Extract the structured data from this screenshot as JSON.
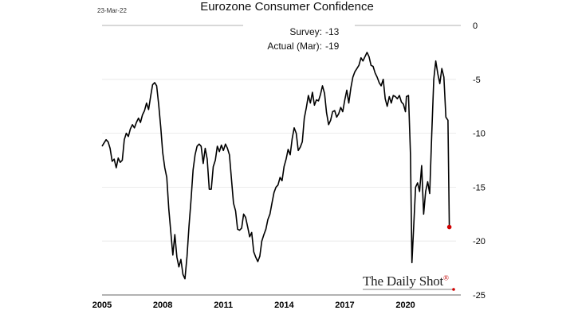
{
  "date_stamp": "23-Mar-22",
  "annotations": {
    "survey_label": "Survey:",
    "survey_value": "-13",
    "actual_label": "Actual (Mar):",
    "actual_value": "-19"
  },
  "brand": "The Daily Shot",
  "brand_mark": "®",
  "colors": {
    "line": "#000000",
    "marker": "#d00000",
    "grid": "#e6e6e6"
  },
  "chart_data": {
    "type": "line",
    "title": "Eurozone Consumer Confidence",
    "xlabel": "",
    "ylabel": "",
    "xlim": [
      2005.0,
      2022.5
    ],
    "ylim": [
      -25,
      0
    ],
    "x_ticks": [
      2005,
      2008,
      2011,
      2014,
      2017,
      2020
    ],
    "x_tick_labels": [
      "2005",
      "2008",
      "2011",
      "2014",
      "2017",
      "2020"
    ],
    "y_ticks": [
      0,
      -5,
      -10,
      -15,
      -20,
      -25
    ],
    "y_tick_labels": [
      "0",
      "-5",
      "-10",
      "-15",
      "-20",
      "-25"
    ],
    "y_axis_side": "right",
    "grid": "horizontal",
    "series": [
      {
        "points": [
          [
            2005.0,
            -11.2
          ],
          [
            2005.1,
            -10.9
          ],
          [
            2005.2,
            -10.6
          ],
          [
            2005.3,
            -10.8
          ],
          [
            2005.4,
            -11.4
          ],
          [
            2005.5,
            -12.6
          ],
          [
            2005.6,
            -12.4
          ],
          [
            2005.7,
            -13.2
          ],
          [
            2005.8,
            -12.3
          ],
          [
            2005.9,
            -12.7
          ],
          [
            2006.0,
            -12.5
          ],
          [
            2006.1,
            -10.6
          ],
          [
            2006.2,
            -10.0
          ],
          [
            2006.3,
            -10.3
          ],
          [
            2006.4,
            -9.6
          ],
          [
            2006.5,
            -9.2
          ],
          [
            2006.6,
            -9.5
          ],
          [
            2006.7,
            -9.0
          ],
          [
            2006.8,
            -8.6
          ],
          [
            2006.9,
            -9.0
          ],
          [
            2007.0,
            -8.3
          ],
          [
            2007.1,
            -7.9
          ],
          [
            2007.2,
            -7.2
          ],
          [
            2007.3,
            -7.8
          ],
          [
            2007.4,
            -6.6
          ],
          [
            2007.5,
            -5.5
          ],
          [
            2007.6,
            -5.3
          ],
          [
            2007.7,
            -5.6
          ],
          [
            2007.8,
            -7.3
          ],
          [
            2007.9,
            -9.4
          ],
          [
            2008.0,
            -11.8
          ],
          [
            2008.1,
            -13.2
          ],
          [
            2008.2,
            -14.1
          ],
          [
            2008.3,
            -17.0
          ],
          [
            2008.4,
            -19.2
          ],
          [
            2008.5,
            -21.3
          ],
          [
            2008.6,
            -19.4
          ],
          [
            2008.7,
            -21.5
          ],
          [
            2008.8,
            -22.4
          ],
          [
            2008.9,
            -21.7
          ],
          [
            2009.0,
            -23.1
          ],
          [
            2009.1,
            -23.5
          ],
          [
            2009.2,
            -21.4
          ],
          [
            2009.3,
            -18.6
          ],
          [
            2009.4,
            -16.2
          ],
          [
            2009.5,
            -13.4
          ],
          [
            2009.6,
            -12.0
          ],
          [
            2009.7,
            -11.2
          ],
          [
            2009.8,
            -11.0
          ],
          [
            2009.9,
            -11.2
          ],
          [
            2010.0,
            -12.8
          ],
          [
            2010.1,
            -11.4
          ],
          [
            2010.2,
            -12.4
          ],
          [
            2010.3,
            -15.2
          ],
          [
            2010.4,
            -15.2
          ],
          [
            2010.5,
            -13.1
          ],
          [
            2010.6,
            -12.5
          ],
          [
            2010.7,
            -11.2
          ],
          [
            2010.8,
            -11.7
          ],
          [
            2010.9,
            -11.1
          ],
          [
            2011.0,
            -11.6
          ],
          [
            2011.1,
            -11.0
          ],
          [
            2011.2,
            -11.4
          ],
          [
            2011.3,
            -12.0
          ],
          [
            2011.4,
            -14.3
          ],
          [
            2011.5,
            -16.5
          ],
          [
            2011.6,
            -17.2
          ],
          [
            2011.7,
            -18.9
          ],
          [
            2011.8,
            -19.0
          ],
          [
            2011.9,
            -18.8
          ],
          [
            2012.0,
            -17.5
          ],
          [
            2012.1,
            -17.8
          ],
          [
            2012.2,
            -18.7
          ],
          [
            2012.3,
            -19.6
          ],
          [
            2012.4,
            -19.2
          ],
          [
            2012.5,
            -21.0
          ],
          [
            2012.6,
            -21.5
          ],
          [
            2012.7,
            -21.9
          ],
          [
            2012.8,
            -21.4
          ],
          [
            2012.9,
            -20.0
          ],
          [
            2013.0,
            -19.4
          ],
          [
            2013.1,
            -18.9
          ],
          [
            2013.2,
            -18.0
          ],
          [
            2013.3,
            -17.5
          ],
          [
            2013.4,
            -16.5
          ],
          [
            2013.5,
            -15.5
          ],
          [
            2013.6,
            -15.0
          ],
          [
            2013.7,
            -14.8
          ],
          [
            2013.8,
            -14.1
          ],
          [
            2013.9,
            -14.4
          ],
          [
            2014.0,
            -13.1
          ],
          [
            2014.1,
            -12.4
          ],
          [
            2014.2,
            -11.5
          ],
          [
            2014.3,
            -12.0
          ],
          [
            2014.4,
            -10.5
          ],
          [
            2014.5,
            -9.5
          ],
          [
            2014.6,
            -10.0
          ],
          [
            2014.7,
            -11.6
          ],
          [
            2014.8,
            -11.3
          ],
          [
            2014.9,
            -10.8
          ],
          [
            2015.0,
            -8.6
          ],
          [
            2015.1,
            -7.6
          ],
          [
            2015.2,
            -6.5
          ],
          [
            2015.3,
            -7.2
          ],
          [
            2015.4,
            -6.2
          ],
          [
            2015.5,
            -7.4
          ],
          [
            2015.6,
            -6.9
          ],
          [
            2015.7,
            -7.0
          ],
          [
            2015.8,
            -6.4
          ],
          [
            2015.9,
            -5.6
          ],
          [
            2016.0,
            -6.3
          ],
          [
            2016.1,
            -8.1
          ],
          [
            2016.2,
            -9.2
          ],
          [
            2016.3,
            -8.8
          ],
          [
            2016.4,
            -8.0
          ],
          [
            2016.5,
            -7.9
          ],
          [
            2016.6,
            -8.5
          ],
          [
            2016.7,
            -8.2
          ],
          [
            2016.8,
            -7.6
          ],
          [
            2016.9,
            -8.0
          ],
          [
            2017.0,
            -6.9
          ],
          [
            2017.1,
            -6.0
          ],
          [
            2017.2,
            -7.2
          ],
          [
            2017.3,
            -5.8
          ],
          [
            2017.4,
            -4.8
          ],
          [
            2017.5,
            -4.3
          ],
          [
            2017.6,
            -4.0
          ],
          [
            2017.7,
            -3.7
          ],
          [
            2017.8,
            -3.0
          ],
          [
            2017.9,
            -3.3
          ],
          [
            2018.0,
            -2.9
          ],
          [
            2018.1,
            -2.5
          ],
          [
            2018.2,
            -2.9
          ],
          [
            2018.3,
            -3.7
          ],
          [
            2018.4,
            -3.8
          ],
          [
            2018.5,
            -4.4
          ],
          [
            2018.6,
            -4.8
          ],
          [
            2018.7,
            -5.3
          ],
          [
            2018.8,
            -5.6
          ],
          [
            2018.9,
            -5.0
          ],
          [
            2019.0,
            -6.8
          ],
          [
            2019.1,
            -7.5
          ],
          [
            2019.2,
            -6.6
          ],
          [
            2019.3,
            -7.2
          ],
          [
            2019.4,
            -6.5
          ],
          [
            2019.5,
            -6.6
          ],
          [
            2019.6,
            -6.8
          ],
          [
            2019.7,
            -6.5
          ],
          [
            2019.8,
            -7.1
          ],
          [
            2019.9,
            -7.3
          ],
          [
            2020.0,
            -8.0
          ],
          [
            2020.05,
            -6.6
          ],
          [
            2020.15,
            -6.5
          ],
          [
            2020.25,
            -12.0
          ],
          [
            2020.32,
            -22.0
          ],
          [
            2020.4,
            -19.0
          ],
          [
            2020.5,
            -15.0
          ],
          [
            2020.6,
            -14.6
          ],
          [
            2020.7,
            -15.4
          ],
          [
            2020.8,
            -13.0
          ],
          [
            2020.9,
            -17.5
          ],
          [
            2021.0,
            -15.4
          ],
          [
            2021.1,
            -14.5
          ],
          [
            2021.2,
            -15.6
          ],
          [
            2021.3,
            -10.0
          ],
          [
            2021.4,
            -5.0
          ],
          [
            2021.5,
            -3.3
          ],
          [
            2021.6,
            -4.5
          ],
          [
            2021.7,
            -5.4
          ],
          [
            2021.8,
            -4.0
          ],
          [
            2021.9,
            -4.8
          ],
          [
            2022.0,
            -8.5
          ],
          [
            2022.1,
            -8.8
          ],
          [
            2022.17,
            -18.7
          ]
        ]
      }
    ],
    "last_point_marker": [
      2022.17,
      -18.7
    ]
  }
}
